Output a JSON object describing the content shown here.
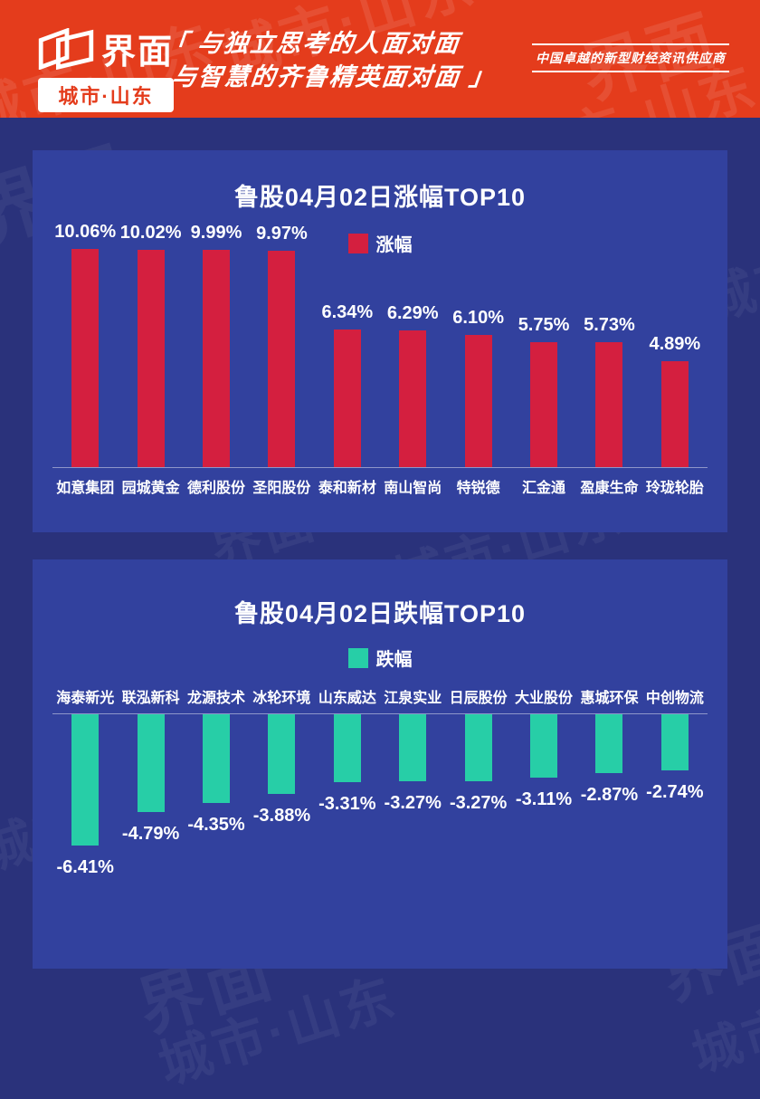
{
  "header": {
    "logo": {
      "brand": "界面",
      "sub": "城市·山东"
    },
    "slogan_line1": "「 与独立思考的人面对面",
    "slogan_line2": "与智慧的齐鲁精英面对面 」",
    "tagline": "中国卓越的新型财经资讯供应商"
  },
  "watermark": {
    "brand": "界面",
    "sub": "城市·山东"
  },
  "colors": {
    "header_red": "#e43c1c",
    "page_navy": "#2a327b",
    "panel_blue": "#32419e",
    "gain_red": "#d41f3f",
    "loss_teal": "#27cea7"
  },
  "chart_data": [
    {
      "type": "bar",
      "orientation": "up",
      "title": "鲁股04月02日涨幅TOP10",
      "legend": "涨幅",
      "legend_position": "top-center",
      "bar_color": "#d41f3f",
      "grid": false,
      "xlabel": "",
      "ylabel": "",
      "ylim": [
        0,
        10.5
      ],
      "categories": [
        "如意集团",
        "园城黄金",
        "德利股份",
        "圣阳股份",
        "泰和新材",
        "南山智尚",
        "特锐德",
        "汇金通",
        "盈康生命",
        "玲珑轮胎"
      ],
      "values": [
        10.06,
        10.02,
        9.99,
        9.97,
        6.34,
        6.29,
        6.1,
        5.75,
        5.73,
        4.89
      ],
      "value_labels": [
        "10.06%",
        "10.02%",
        "9.99%",
        "9.97%",
        "6.34%",
        "6.29%",
        "6.10%",
        "5.75%",
        "5.73%",
        "4.89%"
      ]
    },
    {
      "type": "bar",
      "orientation": "down",
      "title": "鲁股04月02日跌幅TOP10",
      "legend": "跌幅",
      "legend_position": "top-center",
      "bar_color": "#27cea7",
      "grid": false,
      "xlabel": "",
      "ylabel": "",
      "ylim": [
        -6.6,
        0
      ],
      "categories": [
        "海泰新光",
        "联泓新科",
        "龙源技术",
        "冰轮环境",
        "山东威达",
        "江泉实业",
        "日辰股份",
        "大业股份",
        "惠城环保",
        "中创物流"
      ],
      "values": [
        -6.41,
        -4.79,
        -4.35,
        -3.88,
        -3.31,
        -3.27,
        -3.27,
        -3.11,
        -2.87,
        -2.74
      ],
      "value_labels": [
        "-6.41%",
        "-4.79%",
        "-4.35%",
        "-3.88%",
        "-3.31%",
        "-3.27%",
        "-3.27%",
        "-3.11%",
        "-2.87%",
        "-2.74%"
      ]
    }
  ]
}
